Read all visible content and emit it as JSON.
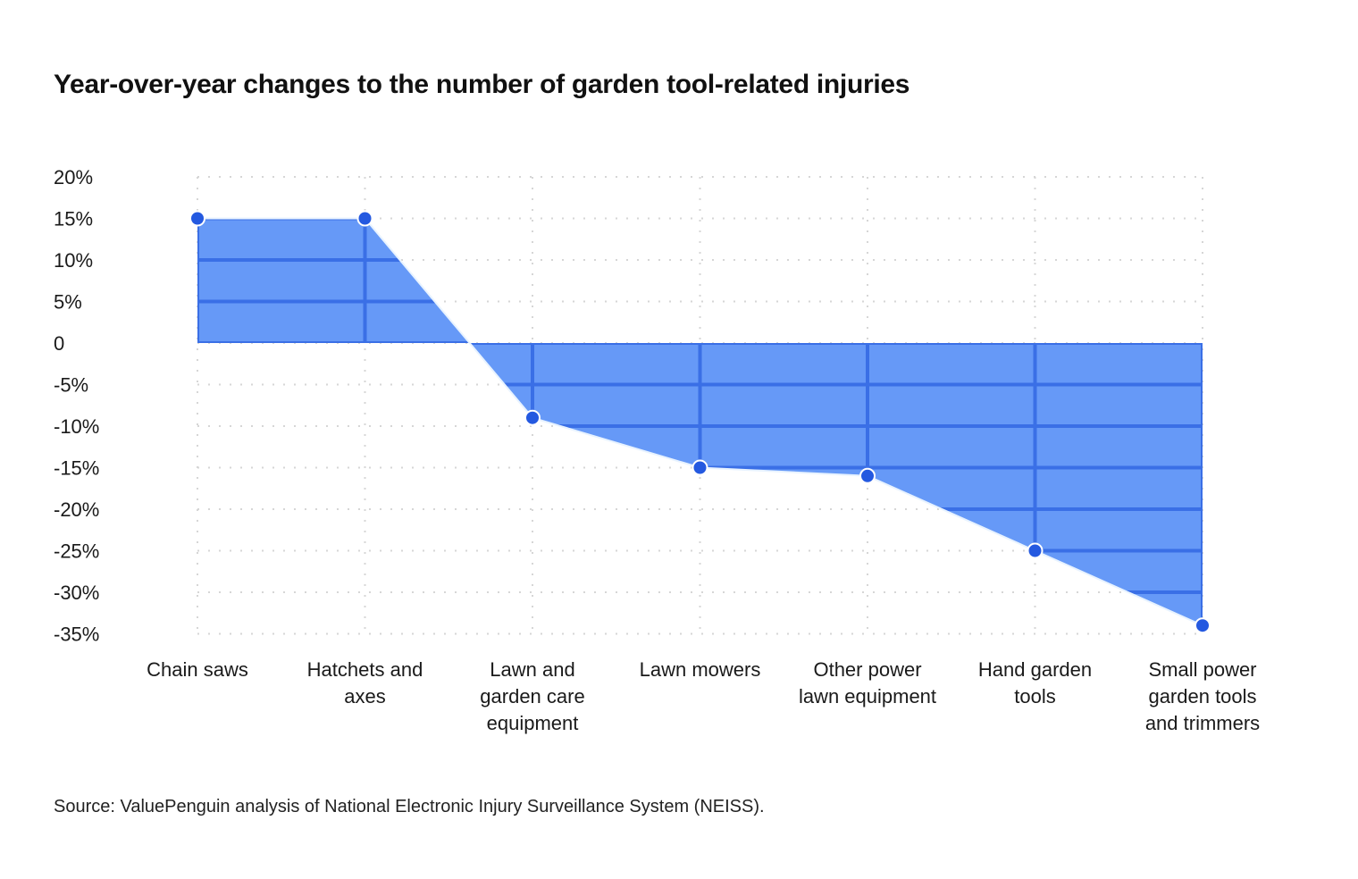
{
  "chart_data": {
    "type": "area",
    "title": "Year-over-year changes to the number of garden tool-related injuries",
    "xlabel": "",
    "ylabel": "",
    "categories": [
      "Chain saws",
      "Hatchets and axes",
      "Lawn and garden care equipment",
      "Lawn mowers",
      "Other power lawn equipment",
      "Hand garden tools",
      "Small power garden tools and trimmers"
    ],
    "category_label_lines": [
      [
        "Chain saws"
      ],
      [
        "Hatchets and",
        "axes"
      ],
      [
        "Lawn and",
        "garden care",
        "equipment"
      ],
      [
        "Lawn mowers"
      ],
      [
        "Other power",
        "lawn equipment"
      ],
      [
        "Hand garden",
        "tools"
      ],
      [
        "Small power",
        "garden tools",
        "and trimmers"
      ]
    ],
    "values": [
      15,
      15,
      -9,
      -15,
      -16,
      -25,
      -34
    ],
    "y_ticks": [
      20,
      15,
      10,
      5,
      0,
      -5,
      -10,
      -15,
      -20,
      -25,
      -30,
      -35
    ],
    "y_tick_labels": [
      "20%",
      "15%",
      "10%",
      "5%",
      "0",
      "-5%",
      "-10%",
      "-15%",
      "-20%",
      "-25%",
      "-30%",
      "-35%"
    ],
    "ylim": [
      -35,
      20
    ],
    "grid": true,
    "legend": "none",
    "colors": {
      "area": "#6699f7",
      "marker": "#2459e0",
      "marker_outline": "#ffffff",
      "grid_on_area": "#3a6fe6",
      "grid_dots": "#d6d6d6"
    }
  },
  "source": "Source: ValuePenguin analysis of National Electronic Injury Surveillance System (NEISS)."
}
